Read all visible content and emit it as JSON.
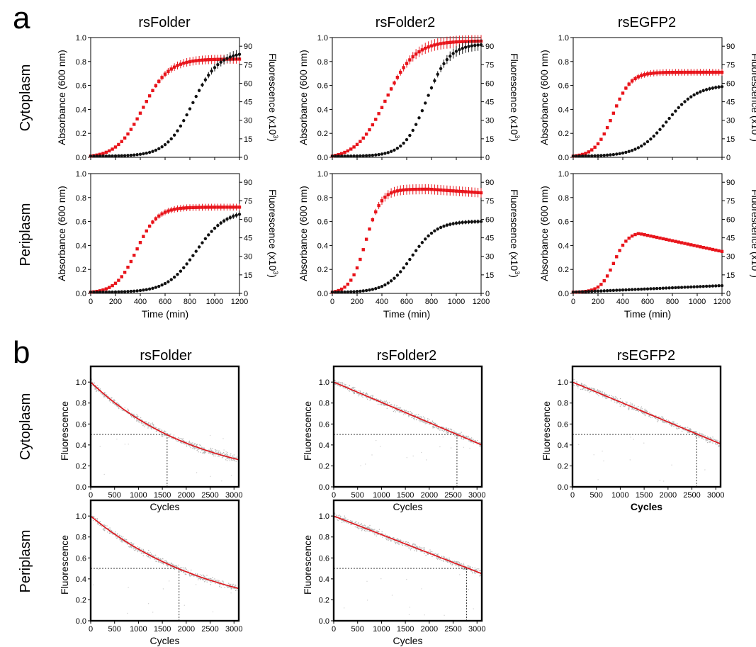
{
  "panel_labels": {
    "a": "a",
    "b": "b"
  },
  "columns": [
    "rsFolder",
    "rsFolder2",
    "rsEGFP2"
  ],
  "rows": [
    "Cytoplasm",
    "Periplasm"
  ],
  "panel_a": {
    "xlabel": "Time (min)",
    "ylabel_left": "Absorbance (600 nm)",
    "ylabel_right_main": "Fluorescence (x10",
    "ylabel_right_sup": "3",
    "ylabel_right_close": ")",
    "x_ticks": [
      "0",
      "200",
      "400",
      "600",
      "800",
      "1000",
      "1200"
    ],
    "y_ticks": [
      "0.0",
      "0.2",
      "0.4",
      "0.6",
      "0.8",
      "1.0"
    ],
    "y2_ticks": [
      "0",
      "15",
      "30",
      "45",
      "60",
      "75",
      "90"
    ]
  },
  "panel_b": {
    "xlabel": "Cycles",
    "ylabel": "Fluorescence",
    "x_ticks": [
      "0",
      "500",
      "1000",
      "1500",
      "2000",
      "2500",
      "3000"
    ],
    "y_ticks": [
      "0.0",
      "0.2",
      "0.4",
      "0.6",
      "0.8",
      "1.0"
    ]
  },
  "colors": {
    "absorbance": "#e8141b",
    "fluorescence": "#111111",
    "fit": "#e0141b",
    "scatter": "#b5b5b5"
  },
  "chart_data": [
    {
      "type": "scatter",
      "panel": "a",
      "column": "rsFolder",
      "row": "Cytoplasm",
      "xlim": [
        0,
        1200
      ],
      "ylim": [
        0,
        1
      ],
      "y2lim": [
        0,
        97
      ],
      "series": [
        {
          "name": "Absorbance",
          "axis": "left",
          "marker": "square",
          "midpoint": 420,
          "steepness": 0.0095,
          "baseline": 0.01,
          "max": 0.82
        },
        {
          "name": "Fluorescence",
          "axis": "right",
          "marker": "circle",
          "midpoint": 820,
          "steepness": 0.0095,
          "baseline": 0.01,
          "max": 0.86
        }
      ]
    },
    {
      "type": "scatter",
      "panel": "a",
      "column": "rsFolder2",
      "row": "Cytoplasm",
      "xlim": [
        0,
        1200
      ],
      "ylim": [
        0,
        1
      ],
      "y2lim": [
        0,
        97
      ],
      "series": [
        {
          "name": "Absorbance",
          "axis": "left",
          "marker": "square",
          "midpoint": 430,
          "steepness": 0.0085,
          "baseline": 0.01,
          "max": 0.97
        },
        {
          "name": "Fluorescence",
          "axis": "right",
          "marker": "circle",
          "midpoint": 760,
          "steepness": 0.011,
          "baseline": 0.01,
          "max": 0.94
        }
      ]
    },
    {
      "type": "scatter",
      "panel": "a",
      "column": "rsEGFP2",
      "row": "Cytoplasm",
      "xlim": [
        0,
        1200
      ],
      "ylim": [
        0,
        1
      ],
      "y2lim": [
        0,
        97
      ],
      "series": [
        {
          "name": "Absorbance",
          "axis": "left",
          "marker": "square",
          "midpoint": 320,
          "steepness": 0.014,
          "baseline": 0.01,
          "max": 0.71
        },
        {
          "name": "Fluorescence",
          "axis": "right",
          "marker": "circle",
          "midpoint": 760,
          "steepness": 0.0085,
          "baseline": 0.01,
          "max": 0.59
        }
      ]
    },
    {
      "type": "scatter",
      "panel": "a",
      "column": "rsFolder",
      "row": "Periplasm",
      "xlim": [
        0,
        1200
      ],
      "ylim": [
        0,
        1
      ],
      "y2lim": [
        0,
        97
      ],
      "series": [
        {
          "name": "Absorbance",
          "axis": "left",
          "marker": "square",
          "midpoint": 370,
          "steepness": 0.012,
          "baseline": 0.01,
          "max": 0.72
        },
        {
          "name": "Fluorescence",
          "axis": "right",
          "marker": "circle",
          "midpoint": 850,
          "steepness": 0.0085,
          "baseline": 0.01,
          "max": 0.66
        }
      ]
    },
    {
      "type": "scatter",
      "panel": "a",
      "column": "rsFolder2",
      "row": "Periplasm",
      "xlim": [
        0,
        1200
      ],
      "ylim": [
        0,
        1
      ],
      "y2lim": [
        0,
        97
      ],
      "series": [
        {
          "name": "Absorbance",
          "axis": "left",
          "marker": "square",
          "midpoint": 270,
          "steepness": 0.016,
          "baseline": 0.01,
          "max": 0.87,
          "peak_x": 780,
          "end": 0.84
        },
        {
          "name": "Fluorescence",
          "axis": "right",
          "marker": "circle",
          "midpoint": 640,
          "steepness": 0.01,
          "baseline": 0.01,
          "max": 0.6
        }
      ]
    },
    {
      "type": "scatter",
      "panel": "a",
      "column": "rsEGFP2",
      "row": "Periplasm",
      "xlim": [
        0,
        1200
      ],
      "ylim": [
        0,
        1
      ],
      "y2lim": [
        0,
        97
      ],
      "series": [
        {
          "name": "Absorbance",
          "axis": "left",
          "marker": "square",
          "midpoint": 330,
          "steepness": 0.018,
          "baseline": 0.01,
          "max": 0.5,
          "peak_x": 530,
          "end": 0.35
        },
        {
          "name": "Fluorescence",
          "axis": "right",
          "marker": "circle",
          "linear_end": 0.065,
          "baseline": 0.01
        }
      ]
    },
    {
      "type": "scatter",
      "panel": "b",
      "column": "rsFolder",
      "row": "Cytoplasm",
      "xlim": [
        0,
        3100
      ],
      "ylim": [
        0,
        1.15
      ],
      "fit": "exponential",
      "y_at_0": 1.0,
      "y_at_3000": 0.27,
      "half_cycles": 1600
    },
    {
      "type": "scatter",
      "panel": "b",
      "column": "rsFolder2",
      "row": "Cytoplasm",
      "xlim": [
        0,
        3100
      ],
      "ylim": [
        0,
        1.15
      ],
      "fit": "linear",
      "y_at_0": 1.0,
      "y_at_3100": 0.4,
      "half_cycles": 2580
    },
    {
      "type": "scatter",
      "panel": "b",
      "column": "rsEGFP2",
      "row": "Cytoplasm",
      "xlim": [
        0,
        3100
      ],
      "ylim": [
        0,
        1.15
      ],
      "fit": "linear",
      "y_at_0": 1.0,
      "y_at_3100": 0.41,
      "half_cycles": 2600
    },
    {
      "type": "scatter",
      "panel": "b",
      "column": "rsFolder",
      "row": "Periplasm",
      "xlim": [
        0,
        3100
      ],
      "ylim": [
        0,
        1.15
      ],
      "fit": "exponential",
      "y_at_0": 1.0,
      "y_at_3000": 0.32,
      "half_cycles": 1850
    },
    {
      "type": "scatter",
      "panel": "b",
      "column": "rsFolder2",
      "row": "Periplasm",
      "xlim": [
        0,
        3100
      ],
      "ylim": [
        0,
        1.15
      ],
      "fit": "linear",
      "y_at_0": 1.0,
      "y_at_3100": 0.45,
      "half_cycles": 2780
    }
  ]
}
